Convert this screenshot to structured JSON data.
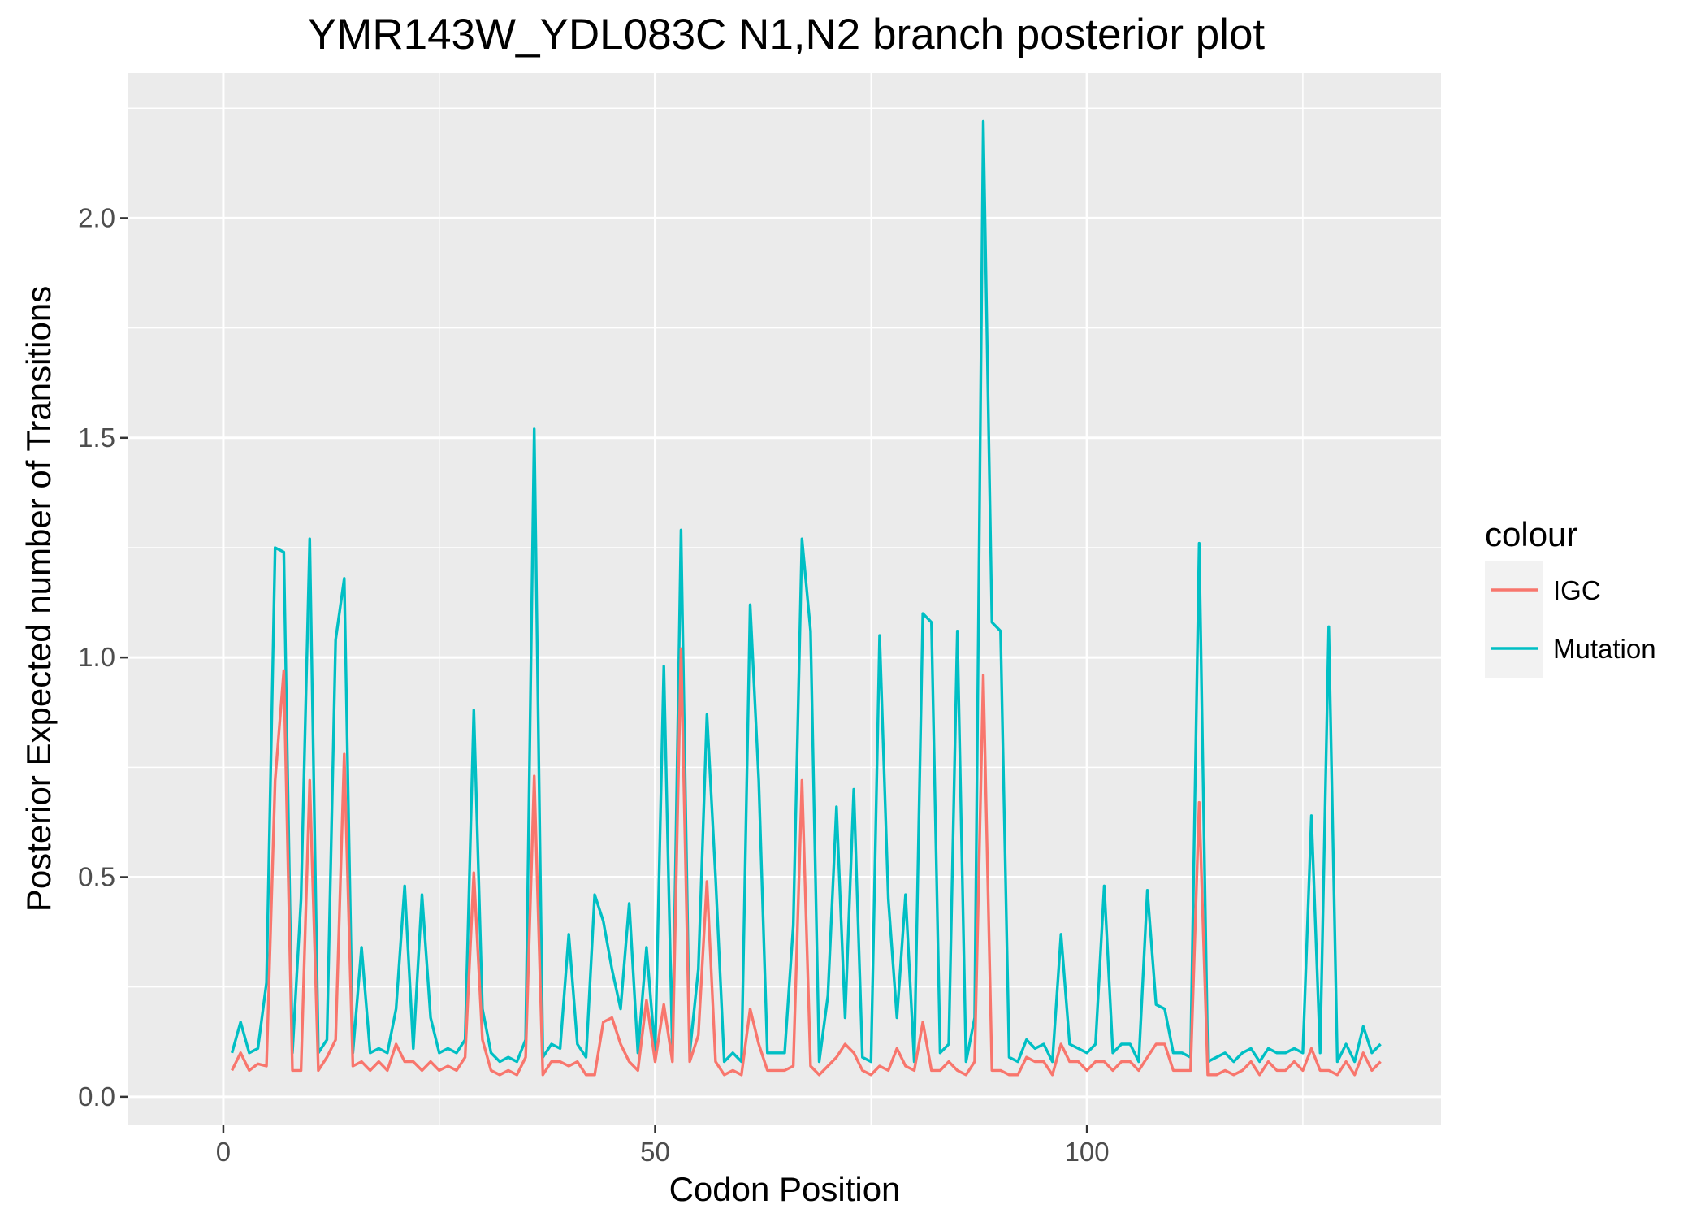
{
  "chart_data": {
    "type": "line",
    "title": "YMR143W_YDL083C N1,N2 branch posterior plot",
    "xlabel": "Codon Position",
    "ylabel": "Posterior Expected number of Transitions",
    "xlim": [
      -11,
      141
    ],
    "ylim": [
      -0.065,
      2.33
    ],
    "x_ticks": [
      0,
      50,
      100
    ],
    "x_tick_labels": [
      "0",
      "50",
      "100"
    ],
    "x_minor_ticks": [
      25,
      75,
      125
    ],
    "y_ticks": [
      0.0,
      0.5,
      1.0,
      1.5,
      2.0
    ],
    "y_tick_labels": [
      "0.0",
      "0.5",
      "1.0",
      "1.5",
      "2.0"
    ],
    "y_minor_ticks": [
      0.25,
      0.75,
      1.25,
      1.75,
      2.25
    ],
    "grid": true,
    "legend": {
      "title": "colour",
      "position": "right"
    },
    "x": [
      1,
      2,
      3,
      4,
      5,
      6,
      7,
      8,
      9,
      10,
      11,
      12,
      13,
      14,
      15,
      16,
      17,
      18,
      19,
      20,
      21,
      22,
      23,
      24,
      25,
      26,
      27,
      28,
      29,
      30,
      31,
      32,
      33,
      34,
      35,
      36,
      37,
      38,
      39,
      40,
      41,
      42,
      43,
      44,
      45,
      46,
      47,
      48,
      49,
      50,
      51,
      52,
      53,
      54,
      55,
      56,
      57,
      58,
      59,
      60,
      61,
      62,
      63,
      64,
      65,
      66,
      67,
      68,
      69,
      70,
      71,
      72,
      73,
      74,
      75,
      76,
      77,
      78,
      79,
      80,
      81,
      82,
      83,
      84,
      85,
      86,
      87,
      88,
      89,
      90,
      91,
      92,
      93,
      94,
      95,
      96,
      97,
      98,
      99,
      100,
      101,
      102,
      103,
      104,
      105,
      106,
      107,
      108,
      109,
      110,
      111,
      112,
      113,
      114,
      115,
      116,
      117,
      118,
      119,
      120,
      121,
      122,
      123,
      124,
      125,
      126,
      127,
      128,
      129,
      130,
      131,
      132,
      133,
      134
    ],
    "series": [
      {
        "name": "IGC",
        "color": "#F8766D",
        "values": [
          0.06,
          0.1,
          0.06,
          0.075,
          0.07,
          0.72,
          0.97,
          0.06,
          0.06,
          0.72,
          0.06,
          0.09,
          0.13,
          0.78,
          0.07,
          0.08,
          0.06,
          0.08,
          0.06,
          0.12,
          0.08,
          0.08,
          0.06,
          0.08,
          0.06,
          0.07,
          0.06,
          0.09,
          0.51,
          0.13,
          0.06,
          0.05,
          0.06,
          0.05,
          0.09,
          0.73,
          0.05,
          0.08,
          0.08,
          0.07,
          0.08,
          0.05,
          0.05,
          0.17,
          0.18,
          0.12,
          0.08,
          0.06,
          0.22,
          0.08,
          0.21,
          0.08,
          1.02,
          0.08,
          0.14,
          0.49,
          0.08,
          0.05,
          0.06,
          0.05,
          0.2,
          0.12,
          0.06,
          0.06,
          0.06,
          0.07,
          0.72,
          0.07,
          0.05,
          0.07,
          0.09,
          0.12,
          0.1,
          0.06,
          0.05,
          0.07,
          0.06,
          0.11,
          0.07,
          0.06,
          0.17,
          0.06,
          0.06,
          0.08,
          0.06,
          0.05,
          0.08,
          0.96,
          0.06,
          0.06,
          0.05,
          0.05,
          0.09,
          0.08,
          0.08,
          0.05,
          0.12,
          0.08,
          0.08,
          0.06,
          0.08,
          0.08,
          0.06,
          0.08,
          0.08,
          0.06,
          0.09,
          0.12,
          0.12,
          0.06,
          0.06,
          0.06,
          0.67,
          0.05,
          0.05,
          0.06,
          0.05,
          0.06,
          0.08,
          0.05,
          0.08,
          0.06,
          0.06,
          0.08,
          0.06,
          0.11,
          0.06,
          0.06,
          0.05,
          0.08,
          0.05,
          0.1,
          0.06,
          0.08
        ]
      },
      {
        "name": "Mutation",
        "color": "#00BFC4",
        "values": [
          0.1,
          0.17,
          0.1,
          0.11,
          0.26,
          1.25,
          1.24,
          0.1,
          0.45,
          1.27,
          0.1,
          0.13,
          1.04,
          1.18,
          0.1,
          0.34,
          0.1,
          0.11,
          0.1,
          0.2,
          0.48,
          0.11,
          0.46,
          0.18,
          0.1,
          0.11,
          0.1,
          0.13,
          0.88,
          0.2,
          0.1,
          0.08,
          0.09,
          0.08,
          0.13,
          1.52,
          0.09,
          0.12,
          0.11,
          0.37,
          0.12,
          0.09,
          0.46,
          0.4,
          0.29,
          0.2,
          0.44,
          0.1,
          0.34,
          0.1,
          0.98,
          0.1,
          1.29,
          0.1,
          0.29,
          0.87,
          0.5,
          0.08,
          0.1,
          0.08,
          1.12,
          0.72,
          0.1,
          0.1,
          0.1,
          0.39,
          1.27,
          1.06,
          0.08,
          0.23,
          0.66,
          0.18,
          0.7,
          0.09,
          0.08,
          1.05,
          0.45,
          0.18,
          0.46,
          0.08,
          1.1,
          1.08,
          0.1,
          0.12,
          1.06,
          0.08,
          0.18,
          2.22,
          1.08,
          1.06,
          0.09,
          0.08,
          0.13,
          0.11,
          0.12,
          0.08,
          0.37,
          0.12,
          0.11,
          0.1,
          0.12,
          0.48,
          0.1,
          0.12,
          0.12,
          0.08,
          0.47,
          0.21,
          0.2,
          0.1,
          0.1,
          0.09,
          1.26,
          0.08,
          0.09,
          0.1,
          0.08,
          0.1,
          0.11,
          0.08,
          0.11,
          0.1,
          0.1,
          0.11,
          0.1,
          0.64,
          0.1,
          1.07,
          0.08,
          0.12,
          0.08,
          0.16,
          0.1,
          0.12
        ]
      }
    ]
  }
}
